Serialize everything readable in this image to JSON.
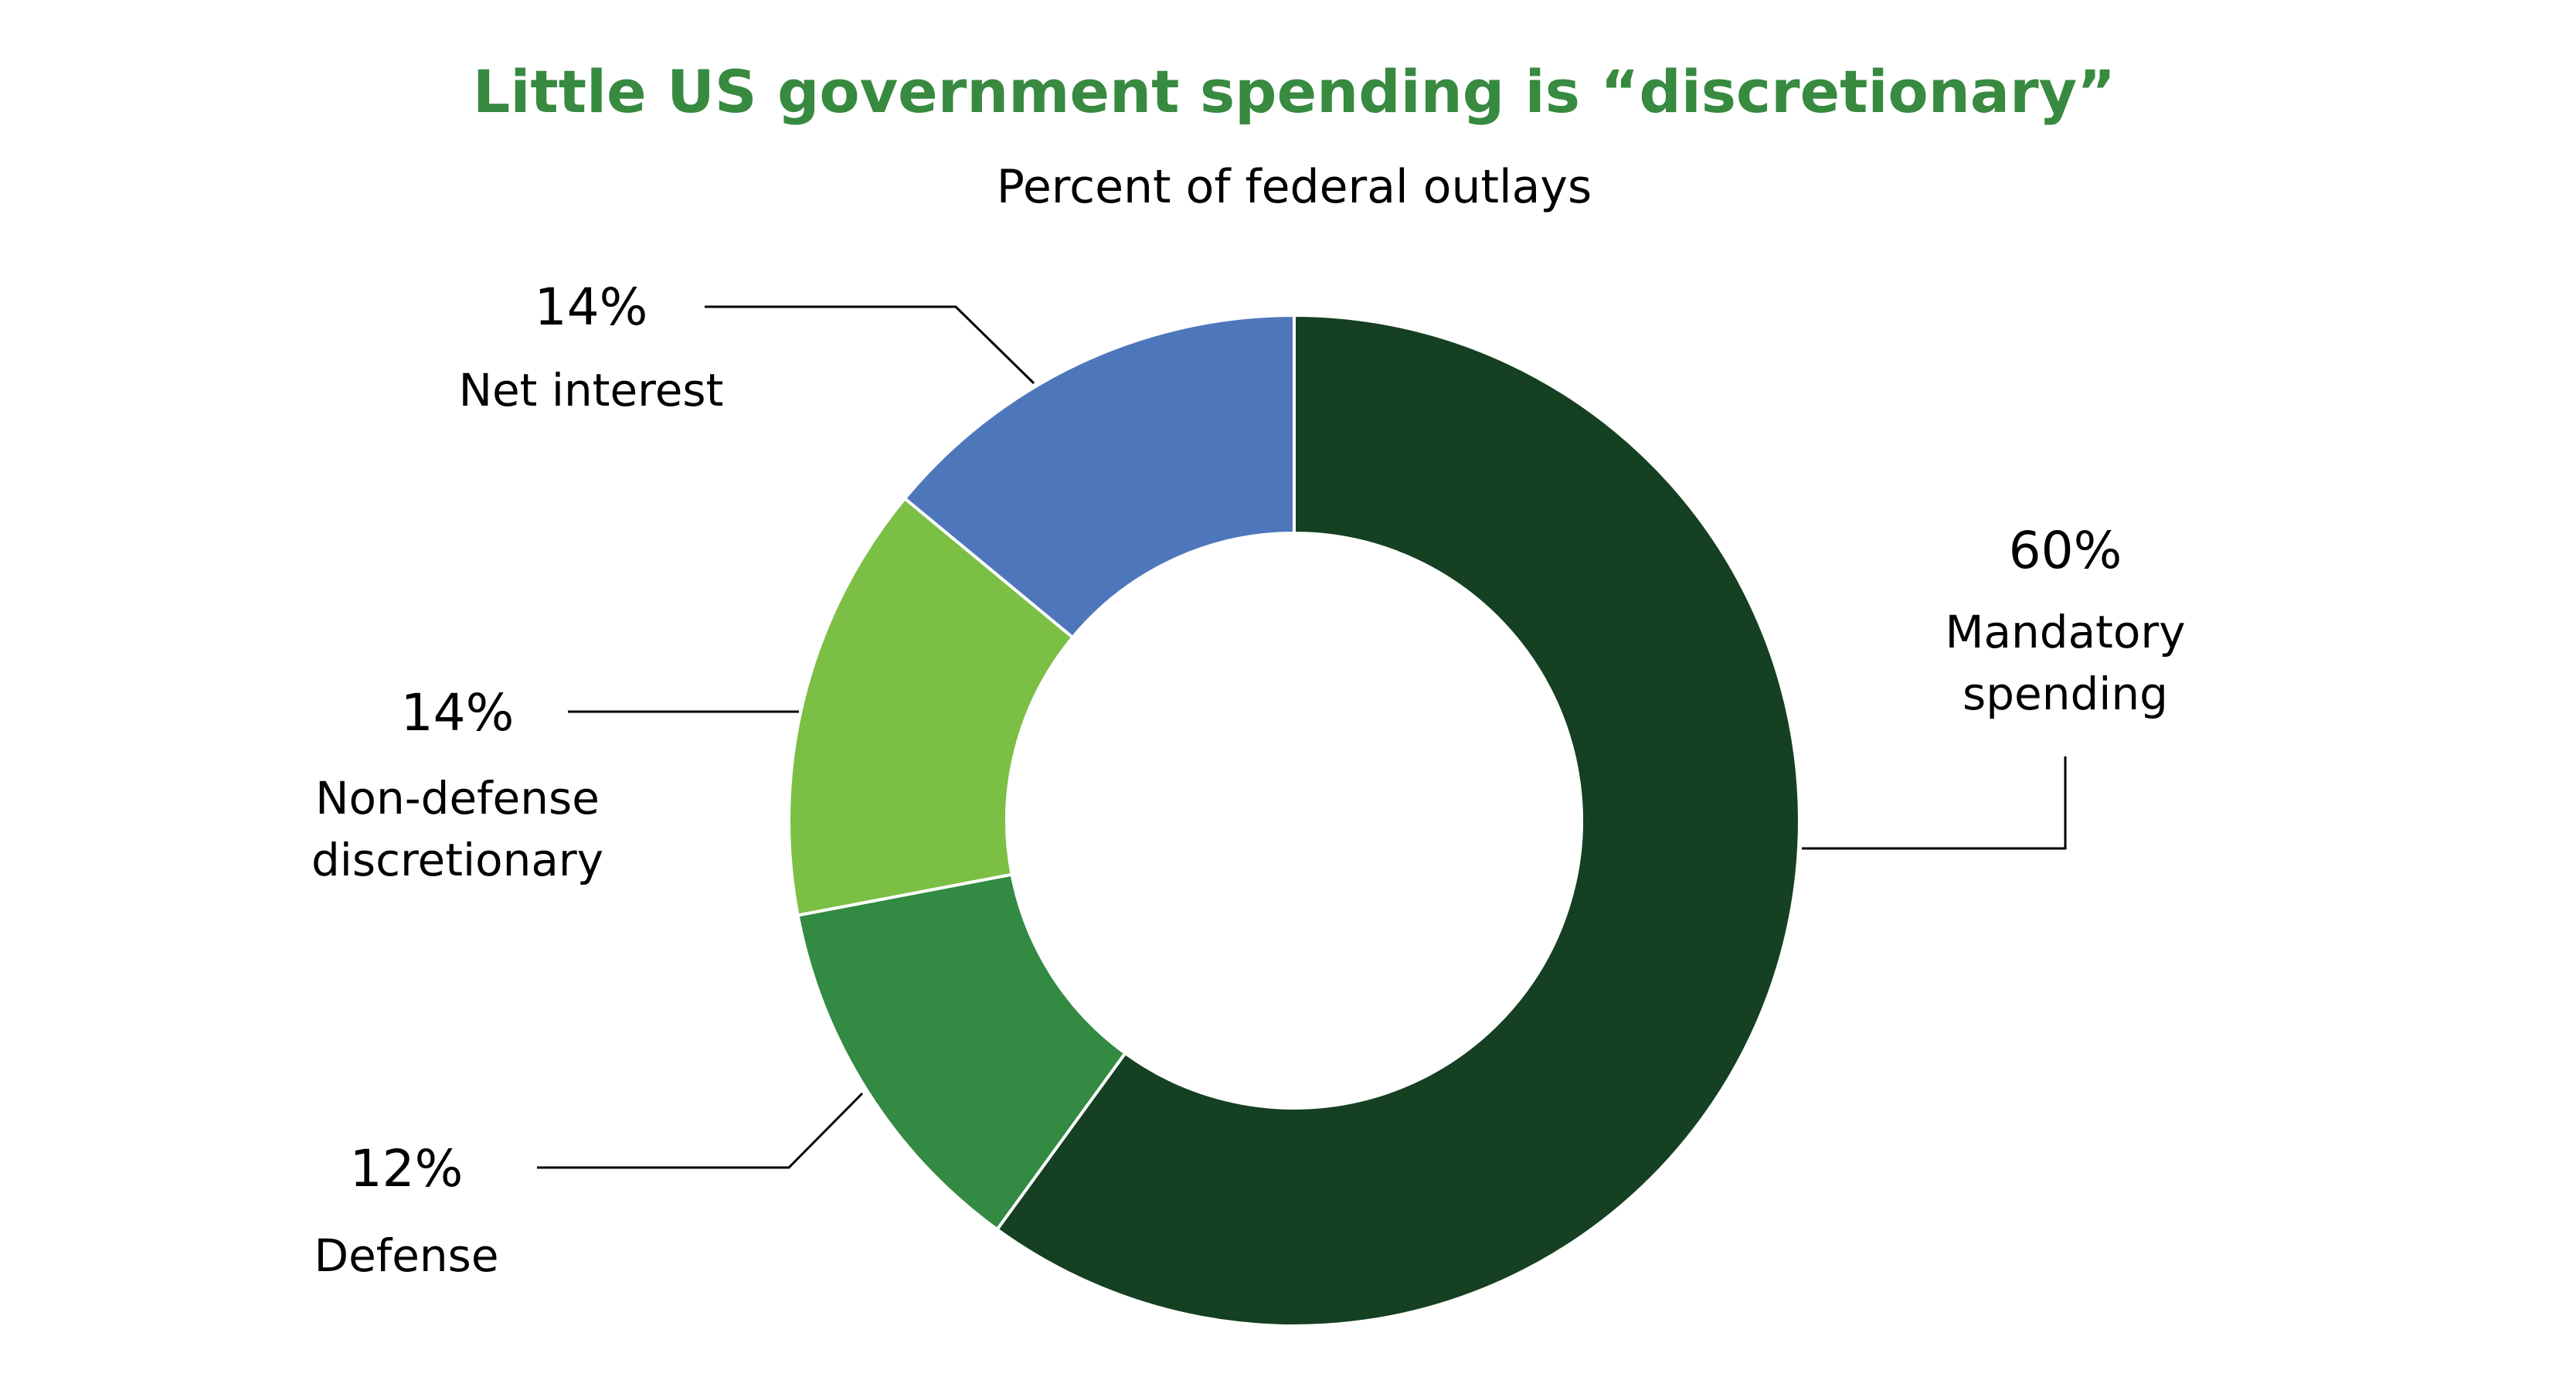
{
  "chart_data": {
    "type": "pie",
    "donut": true,
    "title": "Little US government spending is “discretionary”",
    "subtitle": "Percent of federal outlays",
    "title_color": "#378a3f",
    "slices": [
      {
        "label": "Mandatory spending",
        "lines": [
          "Mandatory",
          "spending"
        ],
        "value": 60,
        "value_label": "60%",
        "color": "#154021"
      },
      {
        "label": "Defense",
        "lines": [
          "Defense"
        ],
        "value": 12,
        "value_label": "12%",
        "color": "#338a42"
      },
      {
        "label": "Non-defense discretionary",
        "lines": [
          "Non-defense",
          "discretionary"
        ],
        "value": 14,
        "value_label": "14%",
        "color": "#7bbf45"
      },
      {
        "label": "Net interest",
        "lines": [
          "Net interest"
        ],
        "value": 14,
        "value_label": "14%",
        "color": "#4e77bb"
      }
    ]
  }
}
